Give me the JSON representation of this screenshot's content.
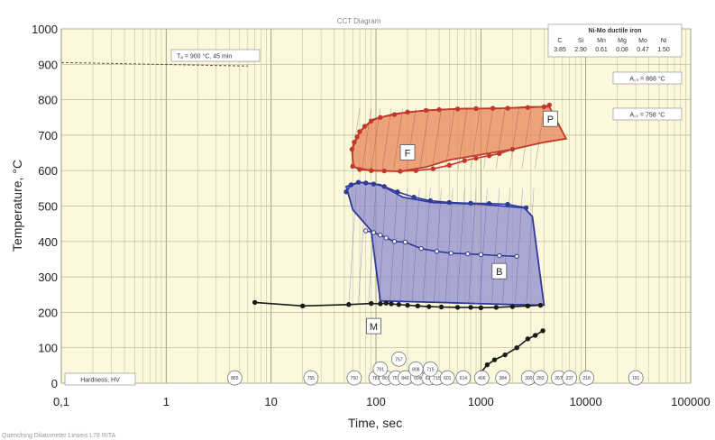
{
  "chart_data": {
    "type": "line",
    "title": "CCT Diagram",
    "xlabel": "Time, sec",
    "ylabel": "Temperature, °C",
    "x_scale": "log",
    "xlim": [
      0.1,
      100000
    ],
    "ylim": [
      0,
      1000
    ],
    "x_tick_labels": [
      "0,1",
      "1",
      "10",
      "100",
      "1000",
      "10000",
      "100000"
    ],
    "y_ticks": [
      0,
      100,
      200,
      300,
      400,
      500,
      600,
      700,
      800,
      900,
      1000
    ],
    "grid": true,
    "austenitizing_note": "Tₐ = 900 °C, 45 min",
    "composition": {
      "title": "Ni-Mo ductile iron",
      "elements": [
        "C",
        "Si",
        "Mn",
        "Mg",
        "Mo",
        "Ni"
      ],
      "values": [
        "3.85",
        "2.90",
        "0.61",
        "0.08",
        "0.47",
        "1.50"
      ]
    },
    "ac3": "A꜀₃ = 868 °C",
    "ac1": "A꜀₁ = 758 °C",
    "hardness_label": "Hardness, HV",
    "hardness_values": [
      {
        "t": 4.5,
        "hv": "865"
      },
      {
        "t": 24,
        "hv": "755"
      },
      {
        "t": 62,
        "hv": "750"
      },
      {
        "t": 100,
        "hv": "781"
      },
      {
        "t": 125,
        "hv": "801"
      },
      {
        "t": 155,
        "hv": "757"
      },
      {
        "t": 190,
        "hv": "840"
      },
      {
        "t": 250,
        "hv": "609"
      },
      {
        "t": 320,
        "hv": "625"
      },
      {
        "t": 380,
        "hv": "715"
      },
      {
        "t": 480,
        "hv": "601"
      },
      {
        "t": 680,
        "hv": "614"
      },
      {
        "t": 1020,
        "hv": "406"
      },
      {
        "t": 1620,
        "hv": "384"
      },
      {
        "t": 2850,
        "hv": "300"
      },
      {
        "t": 3700,
        "hv": "283"
      },
      {
        "t": 5500,
        "hv": "267"
      },
      {
        "t": 7000,
        "hv": "237"
      },
      {
        "t": 10200,
        "hv": "218"
      },
      {
        "t": 30000,
        "hv": "191"
      }
    ],
    "regions": [
      {
        "label": "F",
        "color": "#e8865a",
        "outline": "#c0392b",
        "boundary": [
          [
            59,
            660
          ],
          [
            70,
            710
          ],
          [
            95,
            745
          ],
          [
            150,
            760
          ],
          [
            300,
            770
          ],
          [
            700,
            775
          ],
          [
            1500,
            775
          ],
          [
            3000,
            780
          ],
          [
            4500,
            780
          ],
          [
            6500,
            690
          ],
          [
            4000,
            680
          ],
          [
            2000,
            660
          ],
          [
            1000,
            645
          ],
          [
            500,
            630
          ],
          [
            300,
            610
          ],
          [
            170,
            598
          ],
          [
            90,
            600
          ],
          [
            61,
            610
          ]
        ]
      },
      {
        "label": "P",
        "color": "#e8865a",
        "outline": "#c0392b",
        "label_pos": [
          4600,
          745
        ]
      },
      {
        "label": "B",
        "color": "#8f8ccf",
        "outline": "#2f3b9a",
        "boundary": [
          [
            52,
            555
          ],
          [
            70,
            567
          ],
          [
            110,
            560
          ],
          [
            180,
            525
          ],
          [
            350,
            510
          ],
          [
            1000,
            505
          ],
          [
            2600,
            495
          ],
          [
            3100,
            470
          ],
          [
            4000,
            220
          ],
          [
            2000,
            222
          ],
          [
            900,
            225
          ],
          [
            400,
            228
          ],
          [
            110,
            232
          ],
          [
            90,
            430
          ],
          [
            60,
            490
          ]
        ]
      },
      {
        "label": "M",
        "label_pos": [
          95,
          160
        ]
      }
    ],
    "series": [
      {
        "name": "ferrite start",
        "color": "#c0392b",
        "x": [
          59,
          62,
          66,
          70,
          78,
          90,
          110,
          150,
          200,
          300,
          400,
          600,
          900,
          1300,
          1800,
          2800,
          4000,
          4500
        ],
        "y": [
          660,
          680,
          695,
          710,
          725,
          740,
          750,
          758,
          765,
          770,
          772,
          774,
          775,
          776,
          776,
          778,
          780,
          785
        ]
      },
      {
        "name": "ferrite/pearlite finish",
        "color": "#c0392b",
        "x": [
          60,
          70,
          90,
          120,
          170,
          240,
          350,
          500,
          700,
          900,
          1200,
          1500,
          2000
        ],
        "y": [
          612,
          603,
          600,
          599,
          598,
          600,
          605,
          615,
          628,
          635,
          642,
          648,
          660
        ]
      },
      {
        "name": "bainite start",
        "color": "#2f3b9a",
        "x": [
          52,
          58,
          68,
          80,
          95,
          120,
          160,
          230,
          330,
          500,
          800,
          1200,
          1800,
          2700
        ],
        "y": [
          540,
          560,
          567,
          565,
          562,
          555,
          540,
          525,
          515,
          510,
          508,
          507,
          505,
          495
        ]
      },
      {
        "name": "bainite 50%",
        "color": "#2f3b9a",
        "x": [
          80,
          95,
          110,
          125,
          150,
          190,
          270,
          380,
          520,
          750,
          1000,
          1500,
          2200
        ],
        "y": [
          430,
          425,
          418,
          410,
          400,
          398,
          380,
          372,
          367,
          365,
          363,
          360,
          358
        ]
      },
      {
        "name": "martensite start",
        "color": "#1a1a1a",
        "x": [
          7,
          20,
          55,
          90,
          110,
          125,
          140,
          165,
          200,
          250,
          320,
          420,
          600,
          800,
          1000,
          1400,
          2000,
          2800,
          3700
        ],
        "y": [
          228,
          218,
          222,
          225,
          224,
          226,
          224,
          222,
          220,
          218,
          216,
          215,
          214,
          214,
          213,
          214,
          216,
          218,
          220
        ]
      },
      {
        "name": "low-temperature end",
        "color": "#1a1a1a",
        "x": [
          1000,
          1150,
          1350,
          1700,
          2200,
          2800,
          3300,
          3900
        ],
        "y": [
          30,
          52,
          66,
          80,
          100,
          125,
          135,
          148
        ]
      }
    ],
    "cooling_curve_annotation_hv": [
      {
        "t": 110,
        "temp": 40,
        "hv": "791"
      },
      {
        "t": 165,
        "temp": 68,
        "hv": "757"
      },
      {
        "t": 240,
        "temp": 40,
        "hv": "808"
      },
      {
        "t": 330,
        "temp": 40,
        "hv": "715"
      }
    ],
    "footer": "Quenching Dilatometer Linseis L78 RITA"
  }
}
